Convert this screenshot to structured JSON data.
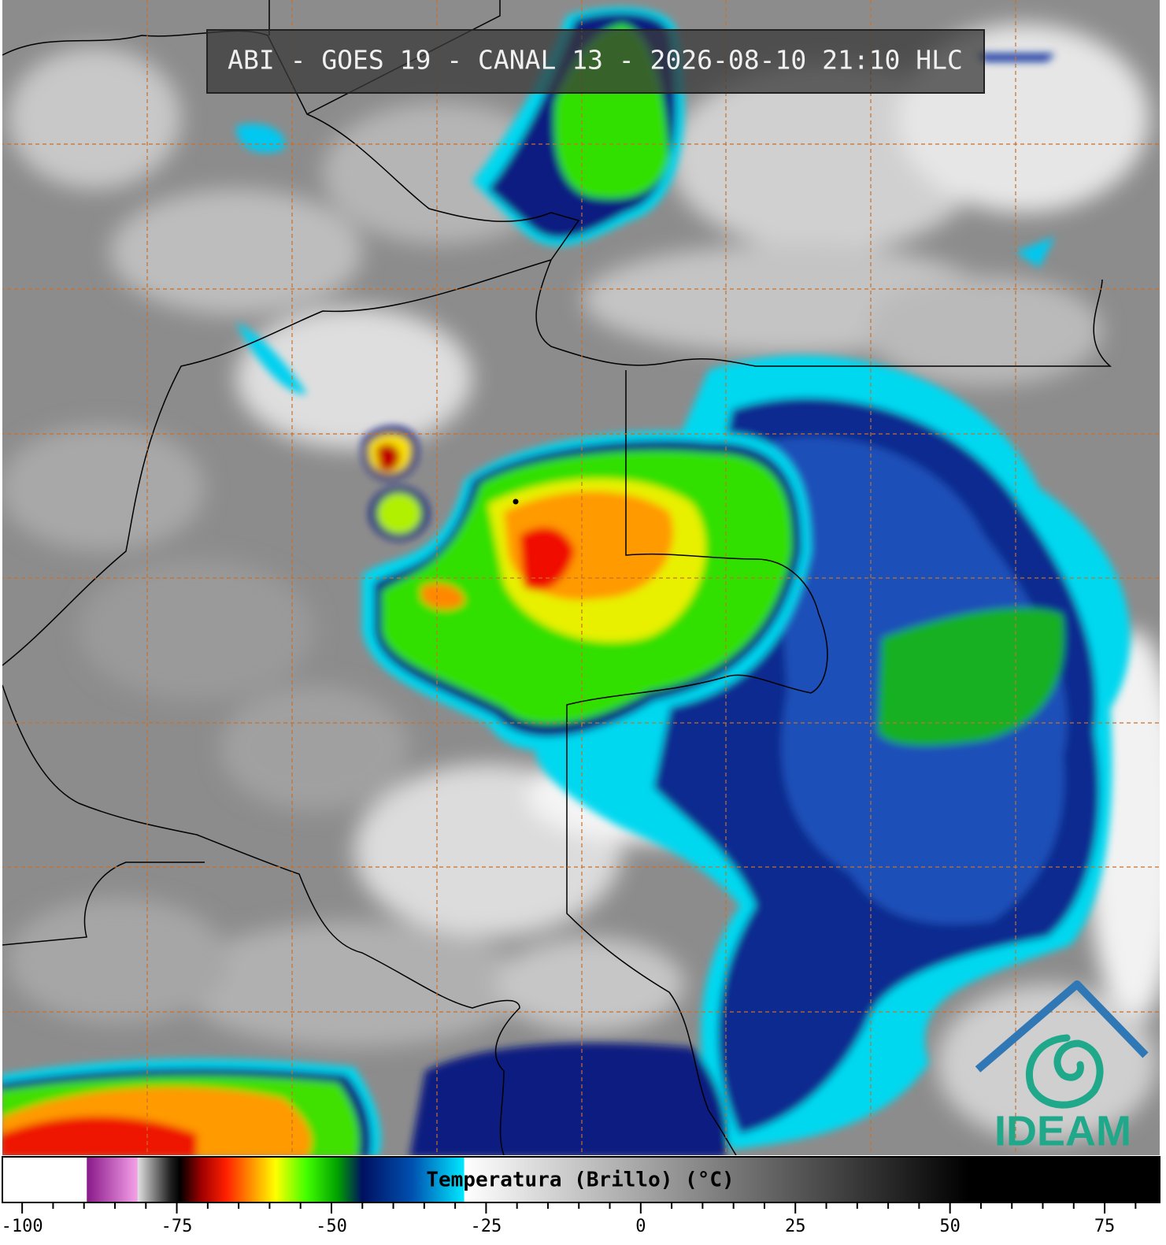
{
  "header": {
    "title": "ABI - GOES 19 - CANAL 13 - 2026-08-10 21:10 HLC"
  },
  "logo": {
    "text": "IDEAM"
  },
  "colorbar": {
    "label": "Temperatura (Brillo) (°C)",
    "xlim": [
      -103.2,
      83.9
    ],
    "ticks": [
      -100,
      -75,
      -50,
      -25,
      0,
      25,
      50,
      75
    ],
    "minor_ticks": [
      -95,
      -90,
      -85,
      -80,
      -70,
      -65,
      -60,
      -55,
      -45,
      -40,
      -35,
      -30,
      -20,
      -15,
      -10,
      -5,
      5,
      10,
      15,
      20,
      30,
      35,
      40,
      45,
      55,
      60,
      65,
      70,
      80
    ],
    "stops": [
      {
        "value": -103.2,
        "color": "#ffffff"
      },
      {
        "value": -89.6,
        "color": "#ffffff"
      },
      {
        "value": -89.5,
        "color": "#8a1a8a"
      },
      {
        "value": -81.4,
        "color": "#f4a0e8"
      },
      {
        "value": -81.3,
        "color": "#e0e0e0"
      },
      {
        "value": -76,
        "color": "#202020"
      },
      {
        "value": -74.5,
        "color": "#000000"
      },
      {
        "value": -71,
        "color": "#a00000"
      },
      {
        "value": -67,
        "color": "#ff2000"
      },
      {
        "value": -63,
        "color": "#ff9000"
      },
      {
        "value": -59,
        "color": "#ffff00"
      },
      {
        "value": -54,
        "color": "#40ff00"
      },
      {
        "value": -49,
        "color": "#00a000"
      },
      {
        "value": -45,
        "color": "#001060"
      },
      {
        "value": -37,
        "color": "#0050b0"
      },
      {
        "value": -28.6,
        "color": "#00e8ff"
      },
      {
        "value": -28.5,
        "color": "#ffffff"
      },
      {
        "value": 53,
        "color": "#000000"
      },
      {
        "value": 83.9,
        "color": "#000000"
      }
    ]
  }
}
